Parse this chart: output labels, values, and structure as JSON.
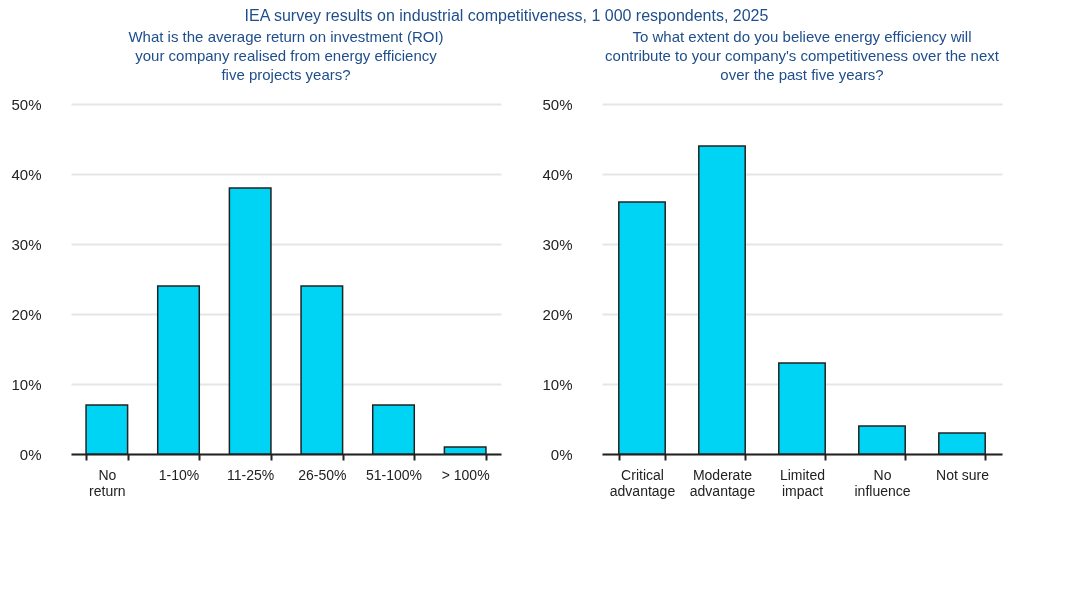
{
  "chart_data": [
    {
      "type": "bar",
      "title": "IEA survey results on industrial competitiveness, 1 000 respondents, 2025",
      "subtitle": "What is the average return on investment (ROI)\nyour company realised from energy efficiency\nfive projects years?",
      "categories": [
        "No\nreturn",
        "1-10%",
        "11-25%",
        "26-50%",
        "51-100%",
        "> 100%"
      ],
      "values": [
        7,
        24,
        38,
        24,
        7,
        1
      ],
      "color": "#00d4f5",
      "ylim": [
        0,
        50
      ],
      "yticks": [
        {
          "value": 0,
          "label": "0%"
        },
        {
          "value": 10,
          "label": "10%"
        },
        {
          "value": 20,
          "label": "20%"
        },
        {
          "value": 30,
          "label": "30%"
        },
        {
          "value": 40,
          "label": "40%"
        },
        {
          "value": 50,
          "label": "50%"
        }
      ],
      "grid": "y"
    },
    {
      "type": "bar",
      "subtitle": "To what extent do you believe energy efficiency will\ncontribute to your company's competitiveness over the next\nover the past five years?",
      "categories": [
        "Critical\nadvantage",
        "Moderate\nadvantage",
        "Limited\nimpact",
        "No\ninfluence",
        "Not sure"
      ],
      "values": [
        36,
        44,
        13,
        4,
        3
      ],
      "color": "#00d4f5",
      "ylim": [
        0,
        50
      ],
      "yticks": [
        {
          "value": 0,
          "label": "0%"
        },
        {
          "value": 10,
          "label": "10%"
        },
        {
          "value": 20,
          "label": "20%"
        },
        {
          "value": 30,
          "label": "30%"
        },
        {
          "value": 40,
          "label": "40%"
        },
        {
          "value": 50,
          "label": "50%"
        }
      ],
      "grid": "y"
    }
  ]
}
